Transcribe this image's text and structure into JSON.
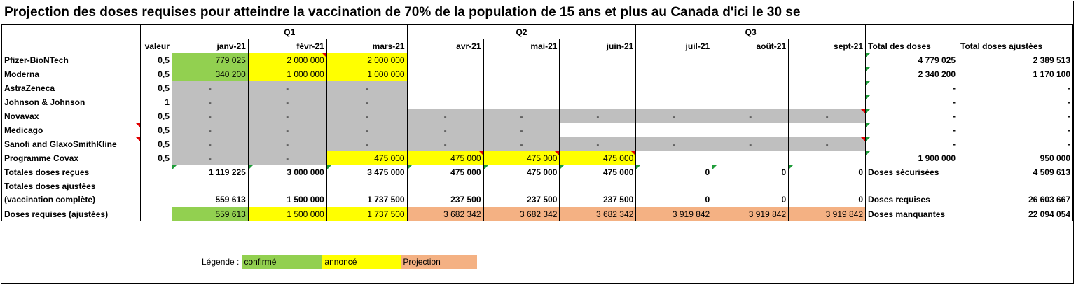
{
  "title": "Projection des doses requises pour atteindre la vaccination de 70% de la population de 15 ans et plus au Canada d'ici le 30 se",
  "quarters": [
    "Q1",
    "Q2",
    "Q3"
  ],
  "headers": {
    "valeur": "valeur",
    "months": [
      "janv-21",
      "févr-21",
      "mars-21",
      "avr-21",
      "mai-21",
      "juin-21",
      "juil-21",
      "août-21",
      "sept-21"
    ],
    "total": "Total des doses",
    "total_adj": "Total  doses ajustées"
  },
  "rows": [
    {
      "name": "Pfizer-BioNTech",
      "valeur": "0,5",
      "months": [
        "779 025",
        "2 000 000",
        "2 000 000",
        "",
        "",
        "",
        "",
        "",
        ""
      ],
      "total": "4 779 025",
      "total_adj": "2 389 513"
    },
    {
      "name": "Moderna",
      "valeur": "0,5",
      "months": [
        "340 200",
        "1 000 000",
        "1 000 000",
        "",
        "",
        "",
        "",
        "",
        ""
      ],
      "total": "2 340 200",
      "total_adj": "1 170 100"
    },
    {
      "name": "AstraZeneca",
      "valeur": "0,5",
      "months": [
        "-",
        "-",
        "-",
        "",
        "",
        "",
        "",
        "",
        ""
      ],
      "total": "-",
      "total_adj": "-"
    },
    {
      "name": "Johnson & Johnson",
      "valeur": "1",
      "months": [
        "-",
        "-",
        "-",
        "",
        "",
        "",
        "",
        "",
        ""
      ],
      "total": "-",
      "total_adj": "-"
    },
    {
      "name": "Novavax",
      "valeur": "0,5",
      "months": [
        "-",
        "-",
        "-",
        "-",
        "-",
        "-",
        "-",
        "-",
        "-"
      ],
      "total": "-",
      "total_adj": "-"
    },
    {
      "name": "Medicago",
      "valeur": "0,5",
      "months": [
        "-",
        "-",
        "-",
        "-",
        "-",
        "",
        "",
        "",
        ""
      ],
      "total": "-",
      "total_adj": "-"
    },
    {
      "name": "Sanofi and GlaxoSmithKline",
      "valeur": "0,5",
      "months": [
        "-",
        "-",
        "-",
        "-",
        "-",
        "-",
        "-",
        "-",
        "-"
      ],
      "total": "-",
      "total_adj": "-"
    },
    {
      "name": "Programme Covax",
      "valeur": "0,5",
      "months": [
        "-",
        "-",
        "475 000",
        "475 000",
        "475 000",
        "475 000",
        "",
        "",
        ""
      ],
      "total": "1 900 000",
      "total_adj": "950 000"
    }
  ],
  "totals_recues": {
    "name": "Totales doses reçues",
    "months": [
      "1 119 225",
      "3 000 000",
      "3 475 000",
      "475 000",
      "475 000",
      "475 000",
      "0",
      "0",
      "0"
    ],
    "label": "Doses sécurisées",
    "value": "4 509 613"
  },
  "totals_ajustees": {
    "name_line1": "Totales doses ajustées",
    "name_line2": "(vaccination complète)",
    "months": [
      "559 613",
      "1 500 000",
      "1 737 500",
      "237 500",
      "237 500",
      "237 500",
      "0",
      "0",
      "0"
    ],
    "label": "Doses requises",
    "value": "26 603 667"
  },
  "doses_requises": {
    "name": "Doses requises (ajustées)",
    "months": [
      "559 613",
      "1 500 000",
      "1 737 500",
      "3 682 342",
      "3 682 342",
      "3 682 342",
      "3 919 842",
      "3 919 842",
      "3 919 842"
    ],
    "label": "Doses manquantes",
    "value": "22 094 054"
  },
  "legend": {
    "label": "Légende :",
    "confirmed": "confirmé",
    "announced": "annoncé",
    "projection": "Projection"
  },
  "colors": {
    "confirmed": "#92d050",
    "announced": "#ffff00",
    "unavailable": "#bfbfbf",
    "projection": "#f4b183"
  }
}
